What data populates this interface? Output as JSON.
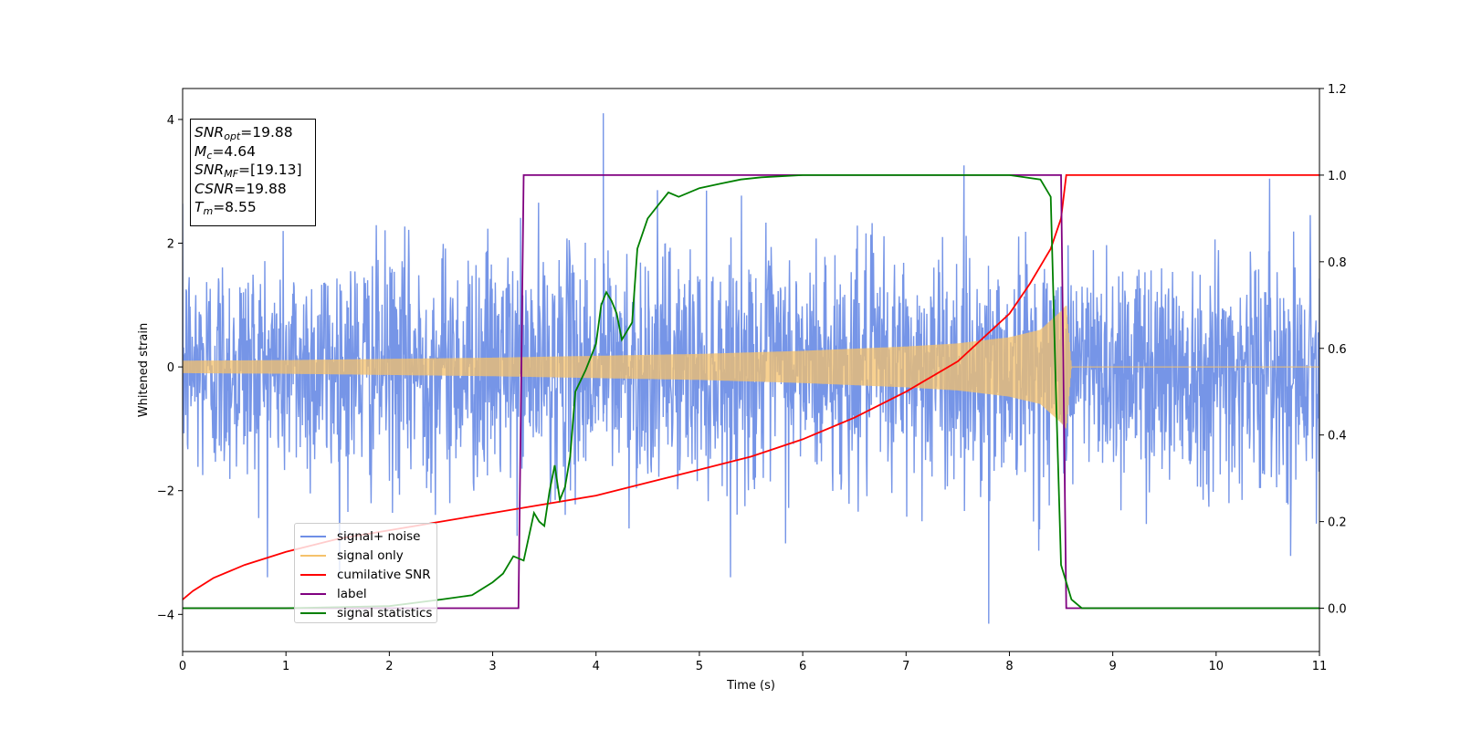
{
  "chart_data": {
    "type": "line",
    "xlabel": "Time (s)",
    "ylabel": "Whitened strain",
    "xlim": [
      0,
      11
    ],
    "ylim_left": [
      -4.6,
      4.5
    ],
    "ylim_right": [
      -0.1,
      1.2
    ],
    "x_ticks": [
      "0",
      "1",
      "2",
      "3",
      "4",
      "5",
      "6",
      "7",
      "8",
      "9",
      "10",
      "11"
    ],
    "y_ticks_left": [
      "4",
      "2",
      "0",
      "−2",
      "−4"
    ],
    "y_ticks_right": [
      "1.2",
      "1.0",
      "0.8",
      "0.6",
      "0.4",
      "0.2",
      "0.0"
    ],
    "info_box": {
      "snr_opt": {
        "name": "SNR",
        "sub": "opt",
        "value": "=19.88"
      },
      "mc": {
        "name": "M",
        "sub": "c",
        "value": "=4.64"
      },
      "snr_mf": {
        "name": "SNR",
        "sub": "MF",
        "value": "=[19.13]"
      },
      "csnr": {
        "name": "CSNR",
        "value": "=19.88"
      },
      "tm": {
        "name": "T",
        "sub": "m",
        "value": "=8.55"
      }
    },
    "series": [
      {
        "name": "signal+ noise",
        "color": "#6f8fe6",
        "axis": "left",
        "description": "noise, std ~1.0, peaks near ±3.3, spike to 4.1 at t=4.07 and -4.15 at t=7.8",
        "noise_std": 1.0
      },
      {
        "name": "signal only",
        "color": "#f5c26b",
        "axis": "left",
        "envelope": {
          "x": [
            0,
            1,
            2,
            3,
            4,
            5,
            6,
            7,
            7.5,
            8,
            8.3,
            8.5,
            8.55,
            8.6,
            11
          ],
          "amplitude": [
            0.1,
            0.11,
            0.13,
            0.15,
            0.18,
            0.21,
            0.26,
            0.33,
            0.38,
            0.48,
            0.6,
            0.9,
            1.0,
            0.0,
            0.0
          ]
        }
      },
      {
        "name": "cumilative SNR",
        "color": "#ff0000",
        "axis": "right",
        "x": [
          0,
          0.1,
          0.3,
          0.6,
          1,
          1.5,
          2,
          2.5,
          3,
          3.5,
          4,
          4.5,
          5,
          5.5,
          6,
          6.5,
          7,
          7.5,
          8,
          8.2,
          8.4,
          8.5,
          8.55,
          11
        ],
        "y": [
          0.02,
          0.04,
          0.07,
          0.1,
          0.13,
          0.16,
          0.18,
          0.2,
          0.22,
          0.24,
          0.26,
          0.29,
          0.32,
          0.35,
          0.39,
          0.44,
          0.5,
          0.57,
          0.68,
          0.75,
          0.83,
          0.9,
          1.0,
          1.0
        ]
      },
      {
        "name": "label",
        "color": "#800080",
        "axis": "right",
        "x": [
          0,
          3.25,
          3.3,
          8.5,
          8.55,
          11
        ],
        "y": [
          0,
          0,
          1,
          1,
          0,
          0
        ]
      },
      {
        "name": "signal statistics",
        "color": "#008000",
        "axis": "right",
        "x": [
          0,
          1,
          2,
          2.5,
          2.8,
          3.0,
          3.1,
          3.2,
          3.3,
          3.4,
          3.45,
          3.5,
          3.55,
          3.6,
          3.65,
          3.7,
          3.75,
          3.8,
          3.9,
          4.0,
          4.05,
          4.1,
          4.15,
          4.2,
          4.25,
          4.3,
          4.35,
          4.4,
          4.5,
          4.6,
          4.7,
          4.8,
          5.0,
          5.2,
          5.4,
          5.6,
          6.0,
          7.0,
          8.0,
          8.3,
          8.4,
          8.45,
          8.5,
          8.6,
          8.7,
          11
        ],
        "y": [
          0,
          0,
          0.005,
          0.02,
          0.03,
          0.06,
          0.08,
          0.12,
          0.11,
          0.22,
          0.2,
          0.19,
          0.27,
          0.33,
          0.25,
          0.28,
          0.35,
          0.5,
          0.55,
          0.61,
          0.7,
          0.73,
          0.71,
          0.68,
          0.62,
          0.64,
          0.66,
          0.83,
          0.9,
          0.93,
          0.96,
          0.95,
          0.97,
          0.98,
          0.99,
          0.995,
          1.0,
          1.0,
          1.0,
          0.99,
          0.95,
          0.5,
          0.1,
          0.02,
          0.0,
          0.0
        ]
      }
    ]
  }
}
